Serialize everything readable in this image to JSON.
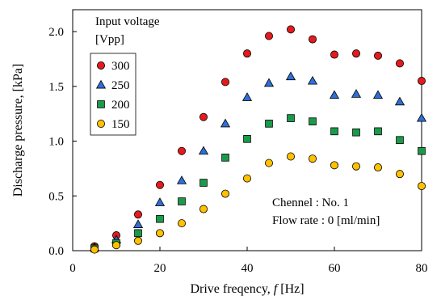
{
  "chart_data": {
    "type": "scatter",
    "xlabel_prefix": "Drive freqency, ",
    "xlabel_var": "f",
    "xlabel_suffix": " [Hz]",
    "ylabel": "Discharge pressure, [kPa]",
    "xlim": [
      0,
      80
    ],
    "ylim": [
      0,
      2.2
    ],
    "xticks": [
      "0",
      "20",
      "40",
      "60",
      "80"
    ],
    "xtick_values": [
      0,
      20,
      40,
      60,
      80
    ],
    "yticks": [
      "0.0",
      "0.5",
      "1.0",
      "1.5",
      "2.0"
    ],
    "ytick_values": [
      0,
      0.5,
      1.0,
      1.5,
      2.0
    ],
    "grid": false,
    "legend": {
      "title_line1": "Input voltage",
      "title_line2": "[Vpp]",
      "placement": "top-left"
    },
    "annotations": {
      "line1": "Chennel : No. 1",
      "line2": "Flow rate : 0 [ml/min]"
    },
    "x": [
      5,
      10,
      15,
      20,
      25,
      30,
      35,
      40,
      45,
      50,
      55,
      60,
      65,
      70,
      75,
      80
    ],
    "series": [
      {
        "name": "300",
        "marker": "circle",
        "color": "#e41a1c",
        "values": [
          0.04,
          0.14,
          0.33,
          0.6,
          0.91,
          1.22,
          1.54,
          1.8,
          1.96,
          2.02,
          1.93,
          1.79,
          1.8,
          1.78,
          1.71,
          1.55
        ]
      },
      {
        "name": "250",
        "marker": "triangle",
        "color": "#2f6fd6",
        "values": [
          0.03,
          0.1,
          0.24,
          0.44,
          0.64,
          0.91,
          1.16,
          1.4,
          1.53,
          1.59,
          1.55,
          1.42,
          1.43,
          1.42,
          1.36,
          1.21
        ]
      },
      {
        "name": "200",
        "marker": "square",
        "color": "#1a9a4a",
        "values": [
          0.02,
          0.07,
          0.16,
          0.29,
          0.45,
          0.62,
          0.85,
          1.02,
          1.16,
          1.21,
          1.18,
          1.09,
          1.08,
          1.09,
          1.01,
          0.91
        ]
      },
      {
        "name": "150",
        "marker": "circle",
        "color": "#ffc000",
        "values": [
          0.01,
          0.05,
          0.09,
          0.16,
          0.25,
          0.38,
          0.52,
          0.66,
          0.8,
          0.86,
          0.84,
          0.78,
          0.77,
          0.76,
          0.7,
          0.59
        ]
      }
    ]
  }
}
